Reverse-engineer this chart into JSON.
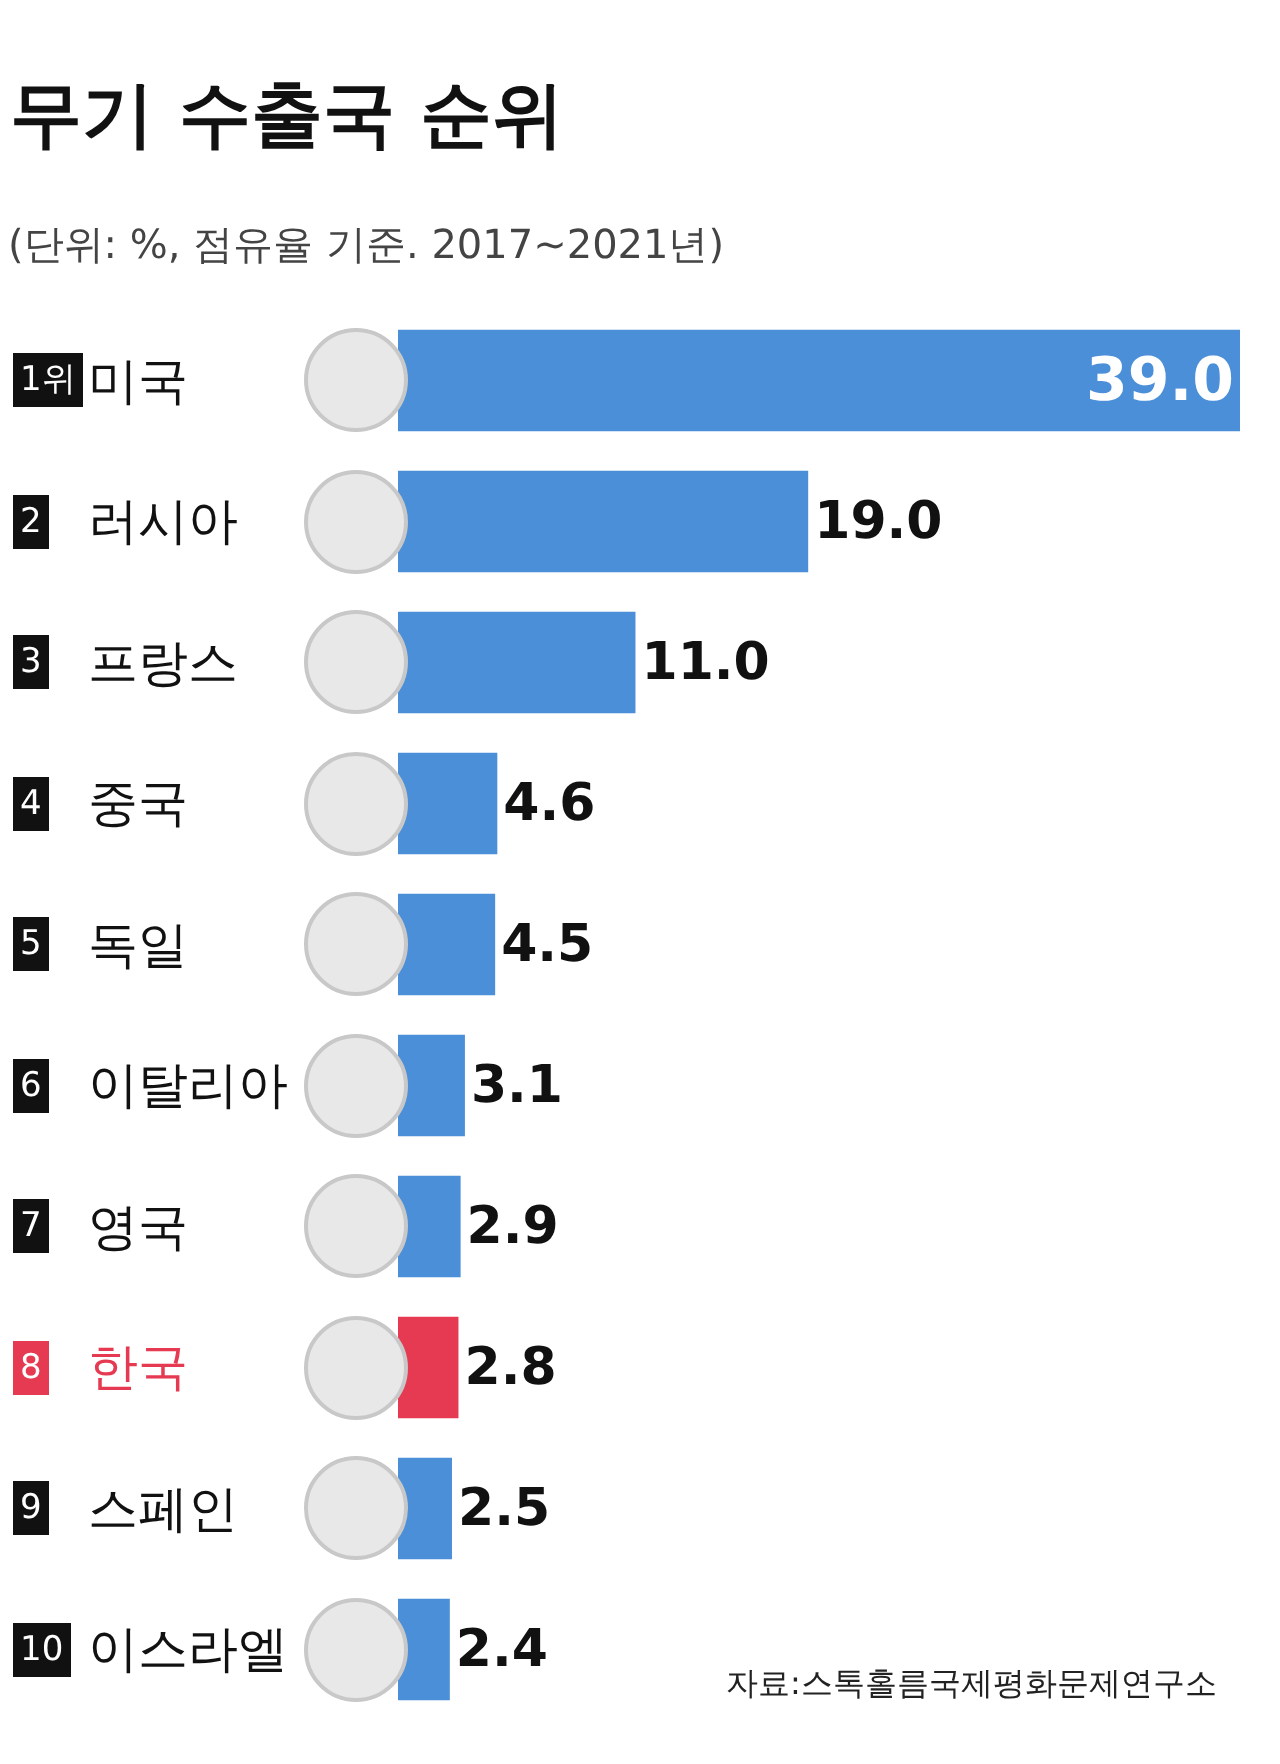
{
  "chart_data": {
    "type": "bar",
    "orientation": "horizontal",
    "title": "무기 수출국 순위",
    "subtitle": "(단위: %, 점유율 기준. 2017~2021년)",
    "categories": [
      "1위 미국",
      "2 러시아",
      "3 프랑스",
      "4 중국",
      "5 독일",
      "6 이탈리아",
      "7 영국",
      "8 한국",
      "9 스페인",
      "10 이스라엘"
    ],
    "values": [
      39.0,
      19.0,
      11.0,
      4.6,
      4.5,
      3.1,
      2.9,
      2.8,
      2.5,
      2.4
    ],
    "value_labels": [
      "39.0",
      "19.0",
      "11.0",
      "4.6",
      "4.5",
      "3.1",
      "2.9",
      "2.8",
      "2.5",
      "2.4"
    ],
    "colors": [
      "#4a8fd8",
      "#4a8fd8",
      "#4a8fd8",
      "#4a8fd8",
      "#4a8fd8",
      "#4a8fd8",
      "#4a8fd8",
      "#e63a52",
      "#4a8fd8",
      "#4a8fd8"
    ],
    "annotations": [
      "자료:스톡홀름국제평화문제연구소"
    ],
    "legend": false
  }
}
